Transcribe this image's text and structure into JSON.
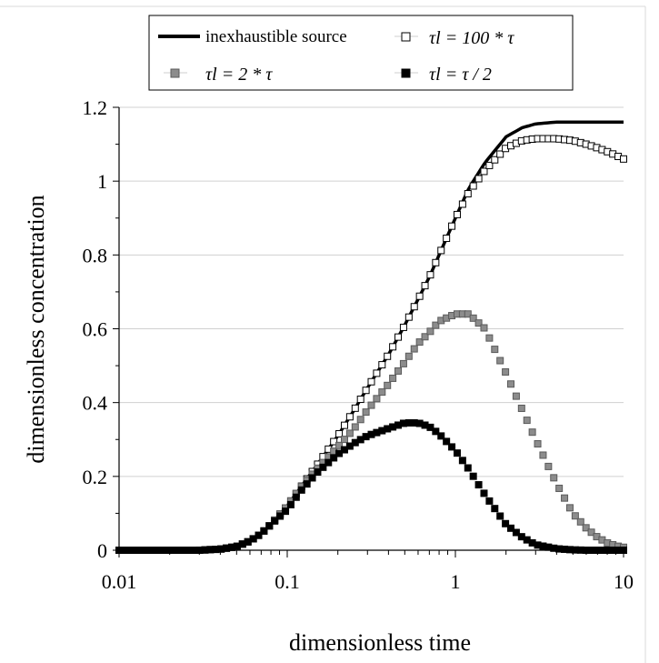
{
  "chart_data": {
    "type": "line",
    "title": "",
    "xlabel": "dimensionless time",
    "ylabel": "dimensionless concentration",
    "x_scale": "log",
    "xlim": [
      0.01,
      10
    ],
    "ylim": [
      0,
      1.2
    ],
    "x_ticks": [
      "0.01",
      "0.1",
      "1",
      "10"
    ],
    "y_ticks": [
      "0",
      "0.2",
      "0.4",
      "0.6",
      "0.8",
      "1",
      "1.2"
    ],
    "grid": "horizontal",
    "legend_position": "top",
    "series": [
      {
        "name": "inexhaustible source",
        "marker": "line",
        "color": "#000000",
        "x": [
          0.01,
          0.02,
          0.03,
          0.04,
          0.05,
          0.06,
          0.07,
          0.08,
          0.1,
          0.12,
          0.15,
          0.2,
          0.25,
          0.3,
          0.4,
          0.5,
          0.6,
          0.7,
          0.8,
          1.0,
          1.2,
          1.5,
          2.0,
          2.5,
          3.0,
          4.0,
          5.0,
          6.0,
          8.0,
          10.0
        ],
        "y": [
          0,
          0,
          0,
          0.003,
          0.01,
          0.025,
          0.045,
          0.07,
          0.12,
          0.17,
          0.23,
          0.31,
          0.38,
          0.44,
          0.53,
          0.61,
          0.68,
          0.74,
          0.8,
          0.9,
          0.98,
          1.05,
          1.12,
          1.145,
          1.155,
          1.16,
          1.16,
          1.16,
          1.16,
          1.16
        ]
      },
      {
        "name": "τl = 100 * τ",
        "marker": "open-square",
        "color": "#000000",
        "x": [
          0.01,
          0.02,
          0.03,
          0.04,
          0.05,
          0.06,
          0.07,
          0.08,
          0.1,
          0.12,
          0.15,
          0.2,
          0.25,
          0.3,
          0.4,
          0.5,
          0.6,
          0.7,
          0.8,
          1.0,
          1.2,
          1.5,
          2.0,
          2.5,
          3.0,
          4.0,
          5.0,
          6.0,
          7.0,
          8.0,
          9.0,
          10.0
        ],
        "y": [
          0,
          0,
          0,
          0.003,
          0.01,
          0.025,
          0.045,
          0.07,
          0.12,
          0.17,
          0.23,
          0.31,
          0.38,
          0.44,
          0.53,
          0.61,
          0.68,
          0.74,
          0.8,
          0.9,
          0.97,
          1.03,
          1.09,
          1.11,
          1.115,
          1.115,
          1.11,
          1.1,
          1.09,
          1.08,
          1.07,
          1.06
        ]
      },
      {
        "name": "τl = 2 * τ",
        "marker": "gray-square",
        "color": "#8c8c8c",
        "x": [
          0.01,
          0.02,
          0.03,
          0.04,
          0.05,
          0.06,
          0.07,
          0.08,
          0.1,
          0.12,
          0.15,
          0.2,
          0.25,
          0.3,
          0.4,
          0.5,
          0.6,
          0.7,
          0.8,
          1.0,
          1.2,
          1.5,
          2.0,
          2.5,
          3.0,
          4.0,
          5.0,
          6.0,
          7.0,
          8.0,
          9.0,
          10.0
        ],
        "y": [
          0,
          0,
          0,
          0.003,
          0.01,
          0.025,
          0.045,
          0.07,
          0.12,
          0.17,
          0.22,
          0.28,
          0.33,
          0.38,
          0.45,
          0.51,
          0.56,
          0.59,
          0.62,
          0.64,
          0.64,
          0.6,
          0.48,
          0.38,
          0.3,
          0.18,
          0.1,
          0.06,
          0.035,
          0.02,
          0.012,
          0.008
        ]
      },
      {
        "name": "τl = τ / 2",
        "marker": "black-square",
        "color": "#000000",
        "x": [
          0.01,
          0.02,
          0.03,
          0.04,
          0.05,
          0.06,
          0.07,
          0.08,
          0.1,
          0.12,
          0.15,
          0.2,
          0.25,
          0.3,
          0.4,
          0.5,
          0.6,
          0.7,
          0.8,
          1.0,
          1.2,
          1.5,
          2.0,
          2.5,
          3.0,
          4.0,
          5.0,
          6.0,
          7.0,
          8.0,
          9.0,
          10.0
        ],
        "y": [
          0,
          0,
          0,
          0.003,
          0.01,
          0.025,
          0.045,
          0.07,
          0.11,
          0.16,
          0.21,
          0.26,
          0.29,
          0.31,
          0.33,
          0.345,
          0.345,
          0.335,
          0.315,
          0.27,
          0.22,
          0.15,
          0.07,
          0.035,
          0.015,
          0.004,
          0.001,
          0,
          0,
          0,
          0,
          0
        ]
      }
    ]
  }
}
